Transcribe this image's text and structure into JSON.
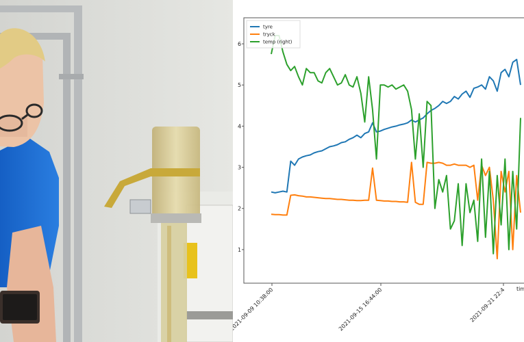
{
  "scene": {
    "left_panel": "person-with-water-column",
    "right_panel": "screen-recording-of-plot"
  },
  "colors": {
    "wall": "#dedfdb",
    "shirt": "#1e6fd6",
    "pipe": "#b8bbbd",
    "column": "#d8c98e",
    "strap": "#c8a93a",
    "sign": "#e8c21c",
    "series_tyre": "#1f77b4",
    "series_tryck": "#ff7f0e",
    "series_temp": "#2ca02c"
  },
  "chart_data": {
    "type": "line",
    "x_tick_labels": [
      "2021-09-09 10:38:00",
      "2021-09-15 16:44:00",
      "2021-09-21 22:4"
    ],
    "x_axis_label_partial": "time",
    "y_tick_labels": [
      "1",
      "2",
      "3",
      "4",
      "5",
      "6"
    ],
    "ylim": [
      0.5,
      6.4
    ],
    "legend": {
      "placement": "top-left",
      "entries": [
        "tyre",
        "tryck",
        "temp (right)"
      ]
    },
    "grid": false,
    "series": [
      {
        "name": "tyre",
        "color": "#1f77b4",
        "values": [
          2.4,
          2.38,
          2.4,
          2.42,
          2.4,
          3.15,
          3.05,
          3.2,
          3.25,
          3.28,
          3.3,
          3.35,
          3.38,
          3.4,
          3.45,
          3.5,
          3.52,
          3.55,
          3.6,
          3.62,
          3.68,
          3.72,
          3.78,
          3.72,
          3.82,
          3.86,
          4.08,
          3.86,
          3.88,
          3.92,
          3.95,
          3.98,
          4.0,
          4.03,
          4.05,
          4.08,
          4.15,
          4.1,
          4.15,
          4.2,
          4.3,
          4.38,
          4.43,
          4.5,
          4.6,
          4.55,
          4.6,
          4.72,
          4.66,
          4.78,
          4.85,
          4.7,
          4.92,
          4.95,
          5.0,
          4.9,
          5.2,
          5.1,
          4.85,
          5.3,
          5.38,
          5.2,
          5.55,
          5.62,
          5.0
        ]
      },
      {
        "name": "tryck",
        "color": "#ff7f0e",
        "values": [
          1.86,
          1.85,
          1.85,
          1.84,
          1.84,
          2.32,
          2.33,
          2.31,
          2.3,
          2.28,
          2.28,
          2.27,
          2.26,
          2.25,
          2.24,
          2.24,
          2.23,
          2.22,
          2.22,
          2.21,
          2.2,
          2.2,
          2.19,
          2.19,
          2.2,
          2.2,
          2.98,
          2.2,
          2.19,
          2.18,
          2.18,
          2.17,
          2.17,
          2.16,
          2.16,
          2.15,
          3.12,
          2.15,
          2.1,
          2.1,
          3.12,
          3.1,
          3.1,
          3.12,
          3.1,
          3.05,
          3.05,
          3.08,
          3.05,
          3.05,
          3.05,
          3.0,
          3.05,
          2.2,
          3.05,
          2.8,
          3.0,
          2.2,
          0.78,
          2.9,
          2.4,
          2.9,
          1.0,
          2.8,
          1.9
        ]
      },
      {
        "name": "temp (right)",
        "color": "#2ca02c",
        "values": [
          5.75,
          6.2,
          6.2,
          5.8,
          5.5,
          5.35,
          5.45,
          5.2,
          5.0,
          5.4,
          5.3,
          5.3,
          5.1,
          5.05,
          5.3,
          5.4,
          5.2,
          5.0,
          5.05,
          5.25,
          5.0,
          4.95,
          5.2,
          4.8,
          4.1,
          5.2,
          4.4,
          3.2,
          5.0,
          5.0,
          4.95,
          5.0,
          4.9,
          4.95,
          5.0,
          4.85,
          4.4,
          3.2,
          4.3,
          3.0,
          4.6,
          4.5,
          2.0,
          2.7,
          2.4,
          2.8,
          1.5,
          1.7,
          2.6,
          1.1,
          2.6,
          1.9,
          2.2,
          1.2,
          3.2,
          1.3,
          2.9,
          0.9,
          2.8,
          1.6,
          3.2,
          1.0,
          2.9,
          1.5,
          4.2
        ]
      }
    ]
  }
}
